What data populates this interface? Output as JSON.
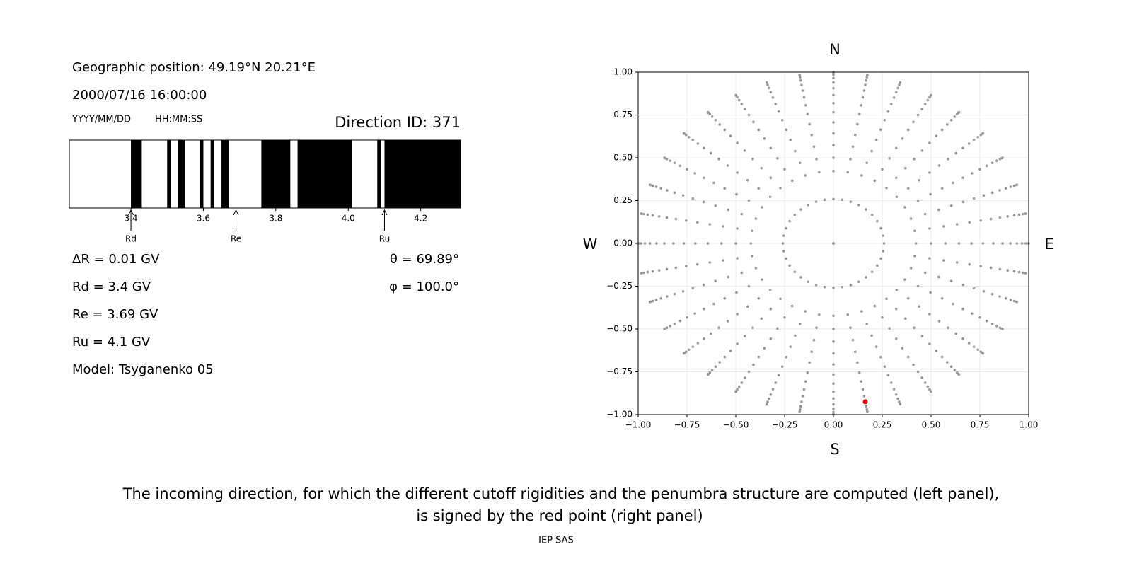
{
  "header": {
    "position": "Geographic position: 49.19°N 20.21°E",
    "datetime": "2000/07/16 16:00:00",
    "date_format": "YYYY/MM/DD",
    "time_format": "HH:MM:SS",
    "direction_id": "Direction ID: 371"
  },
  "parameters": {
    "delta_r": "ΔR = 0.01 GV",
    "rd": "Rd = 3.4 GV",
    "re": "Re = 3.69 GV",
    "ru": "Ru = 4.1 GV",
    "model": "Model: Tsyganenko 05"
  },
  "angles": {
    "theta": "θ = 69.89°",
    "phi": "φ = 100.0°"
  },
  "chart_data": [
    {
      "type": "penumbra",
      "xlim": [
        3.23,
        4.31
      ],
      "xticks": [
        3.4,
        3.6,
        3.8,
        {
          "value": 4,
          "label": "4.0"
        },
        4.2
      ],
      "color": "#000000",
      "bands": [
        {
          "start": 3.4,
          "end": 3.43
        },
        {
          "start": 3.5,
          "end": 3.51
        },
        {
          "start": 3.53,
          "end": 3.55
        },
        {
          "start": 3.59,
          "end": 3.6
        },
        {
          "start": 3.62,
          "end": 3.63
        },
        {
          "start": 3.65,
          "end": 3.67
        },
        {
          "start": 3.76,
          "end": 3.84
        },
        {
          "start": 3.86,
          "end": 4.01
        },
        {
          "start": 4.08,
          "end": 4.09
        },
        {
          "start": 4.1,
          "end": 4.31
        }
      ],
      "markers": [
        {
          "label": "Rd",
          "value": 3.4
        },
        {
          "label": "Re",
          "value": 3.69
        },
        {
          "label": "Ru",
          "value": 4.1
        }
      ]
    },
    {
      "type": "scatter",
      "xlim": [
        -1,
        1
      ],
      "ylim": [
        -1,
        1
      ],
      "xticks": [
        {
          "value": -1,
          "label": "−1.00"
        },
        {
          "value": -0.75,
          "label": "−0.75"
        },
        {
          "value": -0.5,
          "label": "−0.50"
        },
        {
          "value": -0.25,
          "label": "−0.25"
        },
        {
          "value": 0,
          "label": "0.00"
        },
        {
          "value": 0.25,
          "label": "0.25"
        },
        {
          "value": 0.5,
          "label": "0.50"
        },
        {
          "value": 0.75,
          "label": "0.75"
        },
        {
          "value": 1,
          "label": "1.00"
        }
      ],
      "yticks": [
        {
          "value": -1,
          "label": "−1.00"
        },
        {
          "value": -0.75,
          "label": "−0.75"
        },
        {
          "value": -0.5,
          "label": "−0.50"
        },
        {
          "value": -0.25,
          "label": "−0.25"
        },
        {
          "value": 0,
          "label": "0.00"
        },
        {
          "value": 0.25,
          "label": "0.25"
        },
        {
          "value": 0.5,
          "label": "0.50"
        },
        {
          "value": 0.75,
          "label": "0.75"
        },
        {
          "value": 1,
          "label": "1.00"
        }
      ],
      "grid": true,
      "color": "#999999",
      "direction_grid": {
        "zenith_deg": [
          0,
          15,
          25,
          30,
          35,
          40,
          45,
          50,
          55,
          60,
          65,
          70,
          75,
          80,
          85,
          90
        ],
        "azimuth_deg": [
          0,
          10,
          20,
          30,
          40,
          50,
          60,
          70,
          80,
          90,
          100,
          110,
          120,
          130,
          140,
          150,
          160,
          170,
          180,
          190,
          200,
          210,
          220,
          230,
          240,
          250,
          260,
          270,
          280,
          290,
          300,
          310,
          320,
          330,
          340,
          350
        ]
      },
      "highlight": {
        "x": 0.163,
        "y": -0.925,
        "color": "#ff0000"
      },
      "compass": {
        "north": "N",
        "south": "S",
        "west": "W",
        "east": "E"
      }
    }
  ],
  "caption": [
    "The incoming direction, for which the different cutoff rigidities and the penumbra structure are computed (left panel),",
    "is signed by the red point (right panel)"
  ],
  "footer": "IEP SAS"
}
